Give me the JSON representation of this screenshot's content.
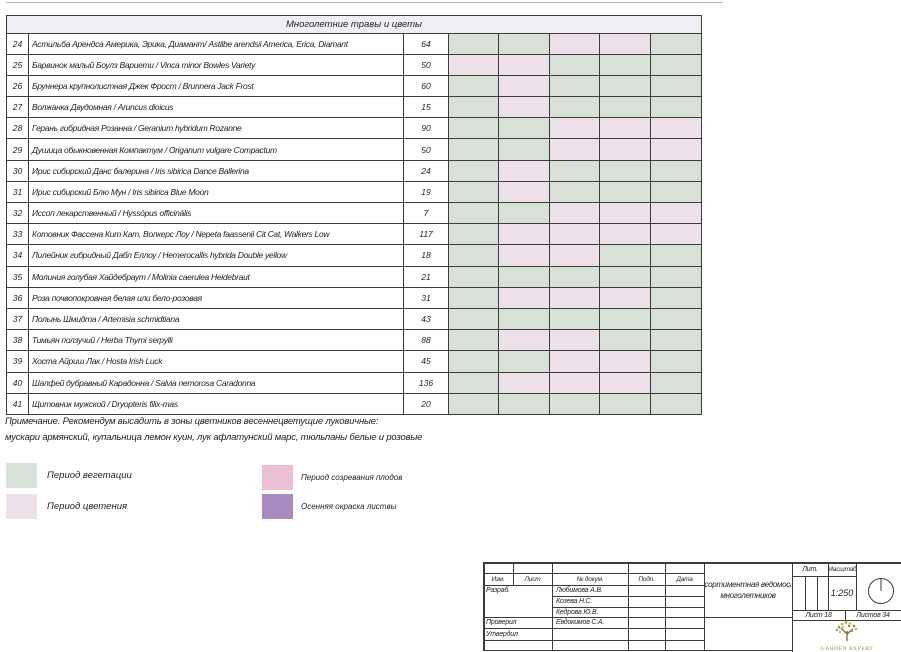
{
  "colors": {
    "veg": "#d7e1d8",
    "flw": "#ece0e9",
    "fruit": "#edbfd3",
    "autumn": "#a78bc0",
    "table_header_bg": "#eef0f4"
  },
  "table": {
    "section_header": "Многолетние травы и цветы",
    "rows": [
      {
        "num": "24",
        "name": "Астильба Арендса Америка, Эрика, Диамант/  Astilbe arendsii America, Erica, Diamant",
        "qty": "64",
        "periods": [
          "veg",
          "veg",
          "flw",
          "flw",
          "veg"
        ]
      },
      {
        "num": "25",
        "name": "Барвинок малый Боулз Вариети / Vinca minor Bowles Variety",
        "qty": "50",
        "periods": [
          "flw",
          "flw",
          "veg",
          "veg",
          "veg"
        ]
      },
      {
        "num": "26",
        "name": "Бруннера крупнолистная Джек Фрост / Brunnera Jack Frost",
        "qty": "60",
        "periods": [
          "veg",
          "flw",
          "veg",
          "veg",
          "veg"
        ]
      },
      {
        "num": "27",
        "name": "Волжанка Двудомная / Aruncus dioicus",
        "qty": "15",
        "periods": [
          "veg",
          "flw",
          "veg",
          "veg",
          "veg"
        ]
      },
      {
        "num": "28",
        "name": "Герань гибридная Розанна / Geranium hybridum Rozanne",
        "qty": "90",
        "periods": [
          "veg",
          "veg",
          "flw",
          "flw",
          "flw"
        ]
      },
      {
        "num": "29",
        "name": "Душица обыкновенная Компактум / Origanum vulgare Compactum",
        "qty": "50",
        "periods": [
          "veg",
          "veg",
          "flw",
          "flw",
          "flw"
        ]
      },
      {
        "num": "30",
        "name": "Ирис сибирский Данс балерина / Iris sibirica Dance Ballerina",
        "qty": "24",
        "periods": [
          "veg",
          "flw",
          "veg",
          "veg",
          "veg"
        ]
      },
      {
        "num": "31",
        "name": "Ирис сибирский Блю Мун / Iris sibirica Blue Moon",
        "qty": "19",
        "periods": [
          "veg",
          "flw",
          "veg",
          "veg",
          "veg"
        ]
      },
      {
        "num": "32",
        "name": "Иссоп лекарственный /  Hyssópus officinális",
        "qty": "7",
        "periods": [
          "veg",
          "veg",
          "flw",
          "flw",
          "flw"
        ]
      },
      {
        "num": "33",
        "name": "Котовник Фассена Кит Кат, Волкерс Лоу / Nepeta faassenii Cit Cat, Walkers Low",
        "qty": "117",
        "periods": [
          "veg",
          "flw",
          "flw",
          "flw",
          "flw"
        ]
      },
      {
        "num": "34",
        "name": "Лилейник  гибридный Дабл Еллоу / Hemerocallis  hybrida Double yellow",
        "qty": "18",
        "periods": [
          "veg",
          "flw",
          "flw",
          "veg",
          "veg"
        ]
      },
      {
        "num": "35",
        "name": "Молиния голубая Хайдебраут / Molinia caerulea Heidebraut",
        "qty": "21",
        "periods": [
          "veg",
          "veg",
          "veg",
          "veg",
          "veg"
        ]
      },
      {
        "num": "36",
        "name": "Роза почвопокровная белая или бело-розовая",
        "qty": "31",
        "periods": [
          "veg",
          "flw",
          "flw",
          "flw",
          "veg"
        ]
      },
      {
        "num": "37",
        "name": "Полынь Шмидта / Artemisia schmidtiana",
        "qty": "43",
        "periods": [
          "veg",
          "veg",
          "veg",
          "veg",
          "veg"
        ]
      },
      {
        "num": "38",
        "name": "Тимьян ползучий / Herba Thymi serpylli",
        "qty": "88",
        "periods": [
          "veg",
          "flw",
          "flw",
          "veg",
          "veg"
        ]
      },
      {
        "num": "39",
        "name": "Хоста Айриш Лак / Hosta Irish Luck",
        "qty": "45",
        "periods": [
          "veg",
          "veg",
          "flw",
          "flw",
          "veg"
        ]
      },
      {
        "num": "40",
        "name": "Шалфей дубравный Карадонна / Salvia nemorosa Caradonna",
        "qty": "136",
        "periods": [
          "veg",
          "flw",
          "flw",
          "flw",
          "veg"
        ]
      },
      {
        "num": "41",
        "name": "Щитовник мужской / Dryopteris filix-mas",
        "qty": "20",
        "periods": [
          "veg",
          "veg",
          "veg",
          "veg",
          "veg"
        ]
      }
    ]
  },
  "note": {
    "line1": "Примечание. Рекомендум высадить в зоны цветников весеннецветущие луковичные:",
    "line2": "мускари армянский, купальница лемон куин, лук афлатунский марс, тюльпаны белые и розовые"
  },
  "legend": {
    "vegetation": "Период вегетации",
    "flowering": "Период цветения",
    "fruit": "Период созревания плодов",
    "autumn": "Осенняя окраска листвы"
  },
  "title_block": {
    "columns": {
      "izm": "Изм.",
      "list": "Лист",
      "doc": "№ докум.",
      "podp": "Подп.",
      "data": "Дата"
    },
    "razrab_label": "Разраб.",
    "proveril_label": "Проверил",
    "utverdil_label": "Утвердил",
    "names": {
      "n1": "Любимова А.В.",
      "n2": "Козева Н.С.",
      "n3": "Кедрова Ю.В.",
      "proveril": "Евдокимов С.А."
    },
    "title_line1": "Ассортиментная ведомость",
    "title_line2": "многолетников",
    "lit": "Лит.",
    "masshtab": "Масштаб",
    "scale": "1:250",
    "list_value": "Лист 18",
    "listov_value": "Листов 34",
    "logo": "GARDEN EXPERT"
  }
}
